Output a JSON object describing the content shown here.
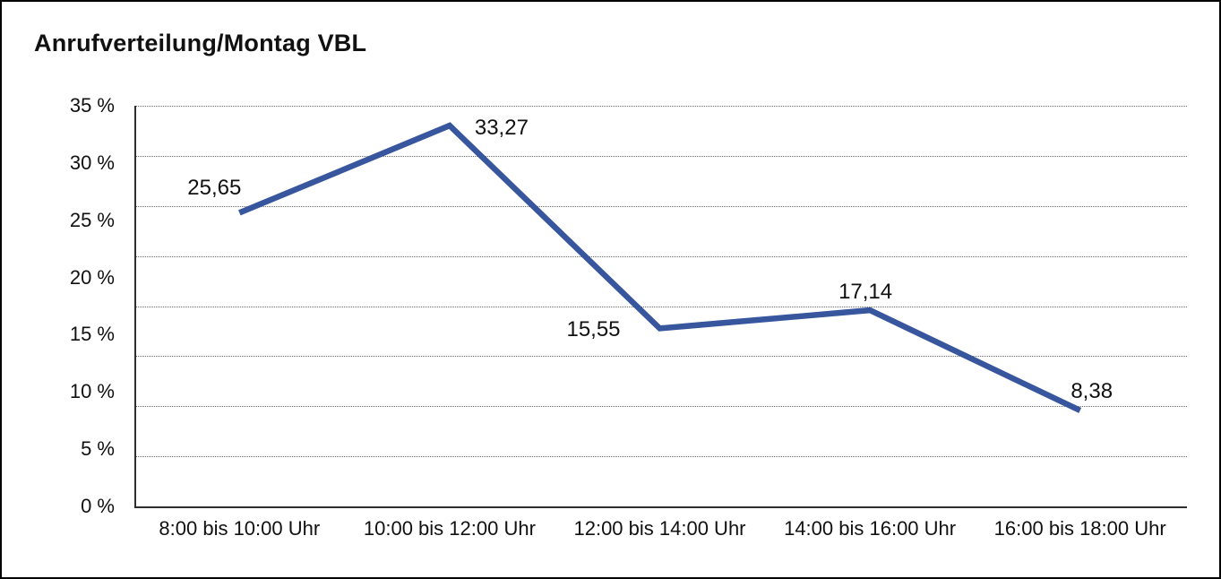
{
  "chart_data": {
    "type": "line",
    "title": "Anrufverteilung/Montag VBL",
    "categories": [
      "8:00 bis 10:00 Uhr",
      "10:00 bis 12:00 Uhr",
      "12:00 bis 14:00 Uhr",
      "14:00 bis 16:00 Uhr",
      "16:00 bis 18:00 Uhr"
    ],
    "values": [
      25.65,
      33.27,
      15.55,
      17.14,
      8.38
    ],
    "point_labels": [
      "25,65",
      "33,27",
      "15,55",
      "17,14",
      "8,38"
    ],
    "y_tick_labels": [
      "35 %",
      "30 %",
      "25 %",
      "20 %",
      "15 %",
      "10 %",
      "5 %",
      "0 %"
    ],
    "ylim": [
      0,
      35
    ],
    "y_label_step_percent": 5,
    "xlabel": "",
    "ylabel": "",
    "legend": "none",
    "grid": "horizontal-dotted",
    "gridline_intervals": 8,
    "line_color": "#37569D",
    "axis_color": "#2E2E2E",
    "grid_color": "#6F6F6F",
    "text_color": "#111111",
    "frame_color": "#000000",
    "background_color": "#FFFFFF"
  }
}
